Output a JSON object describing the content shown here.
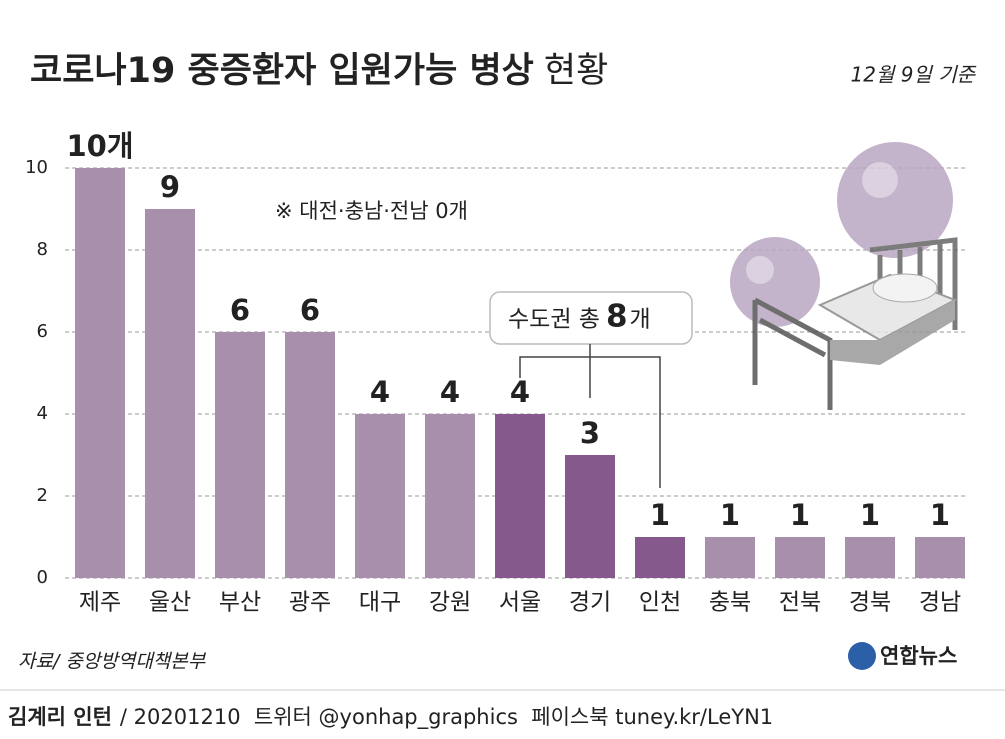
{
  "chart_data": {
    "type": "bar",
    "title": "코로나19 중증환자 입원가능 병상",
    "title_suffix": "현황",
    "subtitle": "12월 9일 기준",
    "note": "※ 대전·충남·전남 0개",
    "annotation": {
      "prefix": "수도권 총",
      "value": 8,
      "suffix": "개"
    },
    "categories": [
      "제주",
      "울산",
      "부산",
      "광주",
      "대구",
      "강원",
      "서울",
      "경기",
      "인천",
      "충북",
      "전북",
      "경북",
      "경남"
    ],
    "values": [
      10,
      9,
      6,
      6,
      4,
      4,
      4,
      3,
      1,
      1,
      1,
      1,
      1
    ],
    "value_labels": [
      "10개",
      "9",
      "6",
      "6",
      "4",
      "4",
      "4",
      "3",
      "1",
      "1",
      "1",
      "1",
      "1"
    ],
    "colors": [
      "#a890ad",
      "#a890ad",
      "#a890ad",
      "#a890ad",
      "#a890ad",
      "#a890ad",
      "#85598c",
      "#85598c",
      "#85598c",
      "#a890ad",
      "#a890ad",
      "#a890ad",
      "#a890ad"
    ],
    "ylim": [
      0,
      10
    ],
    "yticks": [
      0,
      2,
      4,
      6,
      8,
      10
    ],
    "grid": true,
    "source": "자료/ 중앙방역대책본부",
    "logo": "연합뉴스",
    "footer": {
      "author": "김계리 인턴",
      "rest": "/ 20201210  트위터 @yonhap_graphics  페이스북 tuney.kr/LeYN1"
    }
  }
}
